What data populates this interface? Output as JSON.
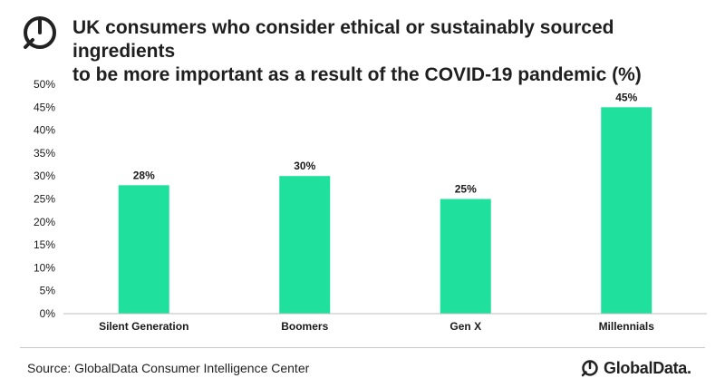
{
  "header": {
    "title_line1": "UK consumers who consider ethical or sustainably sourced ingredients",
    "title_line2": "to be more important as a result of the COVID-19 pandemic (%)"
  },
  "chart_data": {
    "type": "bar",
    "title": "UK consumers who consider ethical or sustainably sourced ingredients to be more important as a result of the COVID-19 pandemic (%)",
    "categories": [
      "Silent Generation",
      "Boomers",
      "Gen X",
      "Millennials"
    ],
    "values": [
      28,
      30,
      25,
      45
    ],
    "data_labels": [
      "28%",
      "30%",
      "25%",
      "45%"
    ],
    "ylim": [
      0,
      50
    ],
    "yticks": [
      "0%",
      "5%",
      "10%",
      "15%",
      "20%",
      "25%",
      "30%",
      "35%",
      "40%",
      "45%",
      "50%"
    ],
    "grid": false,
    "legend": "none",
    "colors": {
      "bar": "#1fe09d",
      "axis": "#bfbfbf",
      "text": "#1a1a1a"
    }
  },
  "footer": {
    "source": "Source: GlobalData Consumer Intelligence Center",
    "brand": "GlobalData."
  }
}
